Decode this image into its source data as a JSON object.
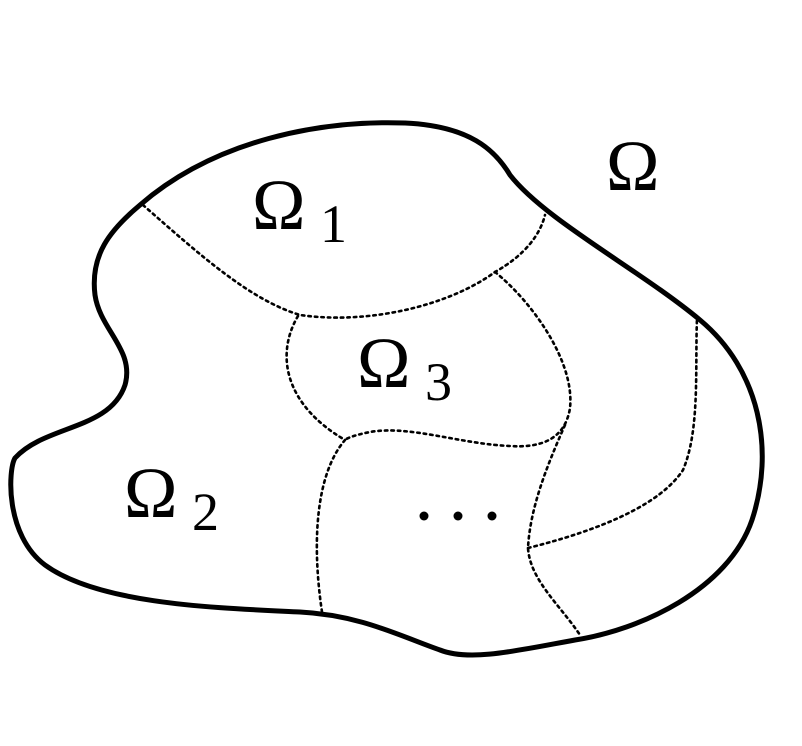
{
  "domain_label": {
    "symbol": "Ω"
  },
  "subdomains": [
    {
      "symbol": "Ω",
      "subscript": "1"
    },
    {
      "symbol": "Ω",
      "subscript": "2"
    },
    {
      "symbol": "Ω",
      "subscript": "3"
    }
  ],
  "ellipsis": "…"
}
